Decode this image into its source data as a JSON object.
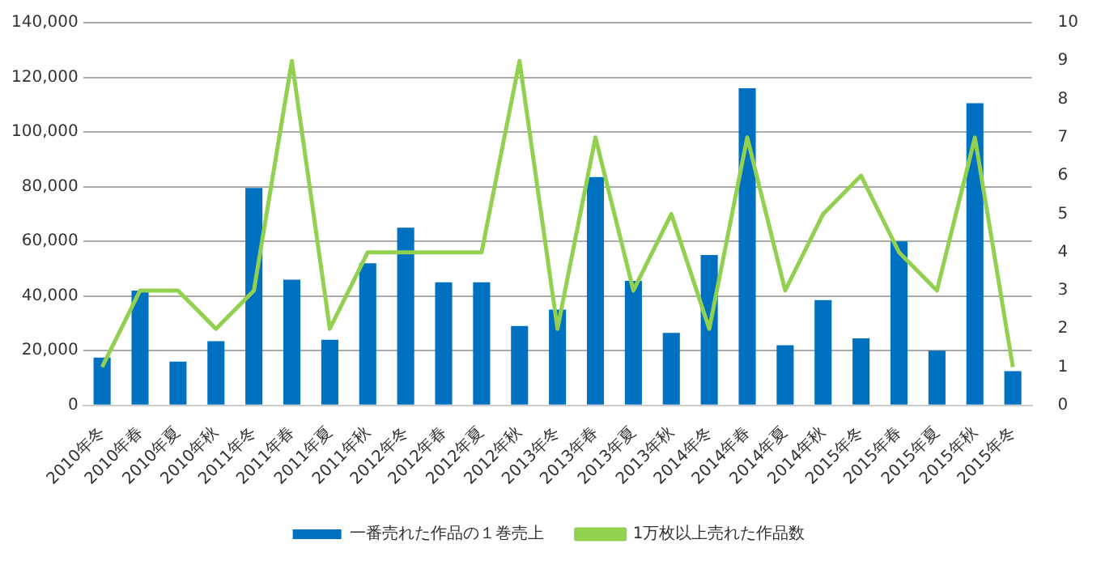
{
  "chart_data": {
    "type": "bar",
    "categories": [
      "2010年冬",
      "2010年春",
      "2010年夏",
      "2010年秋",
      "2011年冬",
      "2011年春",
      "2011年夏",
      "2011年秋",
      "2012年冬",
      "2012年春",
      "2012年夏",
      "2012年秋",
      "2013年冬",
      "2013年春",
      "2013年夏",
      "2013年秋",
      "2014年冬",
      "2014年春",
      "2014年夏",
      "2014年秋",
      "2015年冬",
      "2015年春",
      "2015年夏",
      "2015年秋",
      "2015年冬"
    ],
    "series": [
      {
        "name": "一番売れた作品の１巻売上",
        "color": "#0070c0",
        "values": [
          17500,
          42000,
          16000,
          23500,
          79500,
          46000,
          24000,
          52000,
          65000,
          45000,
          45000,
          29000,
          35000,
          83500,
          45500,
          26500,
          55000,
          116000,
          22000,
          38500,
          24500,
          60000,
          20000,
          110500,
          12500
        ]
      },
      {
        "name": "1万枚以上売れた作品数",
        "type": "line",
        "axis": "y2",
        "color": "#92d050",
        "values": [
          1,
          3,
          3,
          2,
          3,
          9,
          2,
          4,
          4,
          4,
          4,
          9,
          2,
          7,
          3,
          5,
          2,
          7,
          3,
          5,
          6,
          4,
          3,
          7,
          1
        ]
      }
    ],
    "ylim": [
      0,
      140000
    ],
    "yticks": [
      0,
      {
        "value": 20000,
        "label": "20,000"
      },
      {
        "value": 40000,
        "label": "40,000"
      },
      {
        "value": 60000,
        "label": "60,000"
      },
      {
        "value": 80000,
        "label": "80,000"
      },
      {
        "value": 100000,
        "label": "100,000"
      },
      {
        "value": 120000,
        "label": "120,000"
      },
      {
        "value": 140000,
        "label": "140,000"
      }
    ],
    "y2lim": [
      0,
      10
    ],
    "y2ticks": [
      0,
      1,
      2,
      3,
      4,
      5,
      6,
      7,
      8,
      9,
      10
    ],
    "grid": "y",
    "legend": "bottom",
    "marker": "none"
  }
}
